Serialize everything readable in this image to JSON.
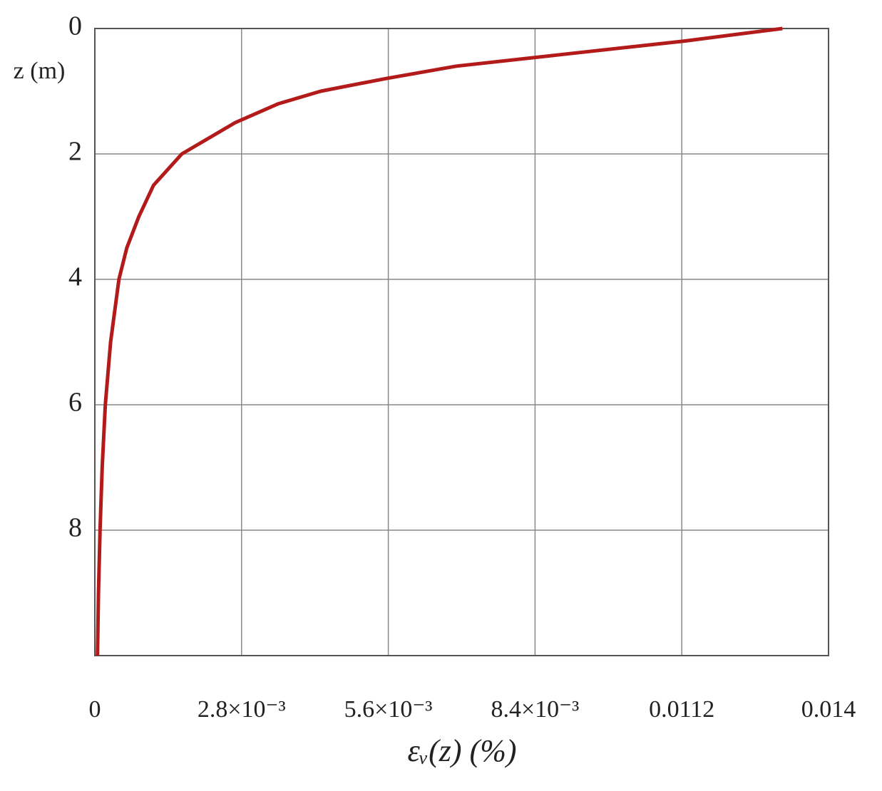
{
  "chart_data": {
    "type": "line",
    "y_label": "z (m)",
    "x_label": "εᵥ(z) (%)",
    "x": [
      0.01312,
      0.01125,
      0.00907,
      0.0069,
      0.00554,
      0.00431,
      0.0035,
      0.00268,
      0.00166,
      0.00112,
      0.00084,
      0.00061,
      0.00046,
      0.0003,
      0.0002,
      0.00014,
      0.0001,
      7e-05,
      5e-05
    ],
    "values": [
      0,
      0.2,
      0.4,
      0.6,
      0.8,
      1.0,
      1.2,
      1.5,
      2.0,
      2.5,
      3.0,
      3.5,
      4.0,
      5,
      6,
      7,
      8,
      9,
      10
    ],
    "color": "#b31b1b",
    "xlim": [
      0,
      0.014
    ],
    "xticks": [
      0,
      {
        "value": 0.0028,
        "label": "2.8×10⁻³"
      },
      {
        "value": 0.0056,
        "label": "5.6×10⁻³"
      },
      {
        "value": 0.0084,
        "label": "8.4×10⁻³"
      },
      0.0112,
      0.014
    ],
    "ylim": [
      0,
      10
    ],
    "yticks": [
      0,
      2,
      4,
      6,
      8
    ],
    "y_inverted": true,
    "grid": true
  }
}
